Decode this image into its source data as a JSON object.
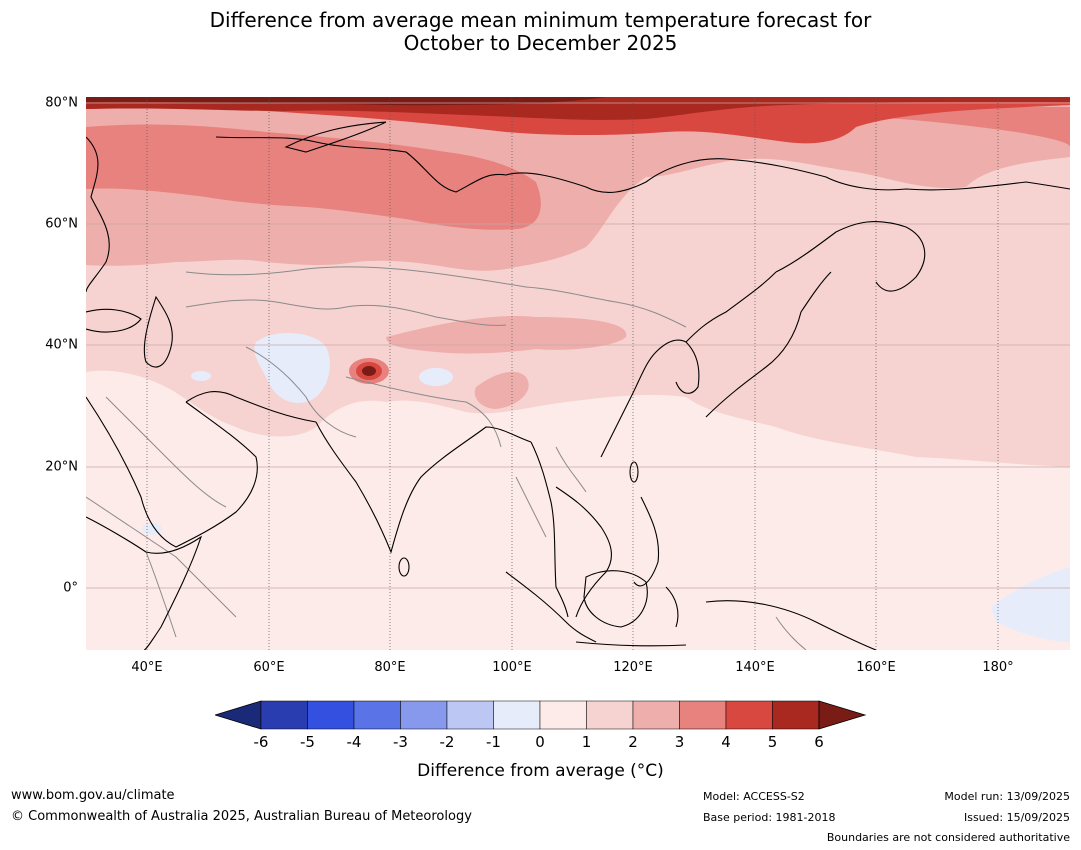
{
  "title_line1": "Difference from average mean minimum temperature forecast for",
  "title_line2": "October to December 2025",
  "lat_labels": [
    "80°N",
    "60°N",
    "40°N",
    "20°N",
    "0°"
  ],
  "lon_labels": [
    "40°E",
    "60°E",
    "80°E",
    "100°E",
    "120°E",
    "140°E",
    "160°E",
    "180°"
  ],
  "colorbar": {
    "ticks": [
      "-6",
      "-5",
      "-4",
      "-3",
      "-2",
      "-1",
      "0",
      "1",
      "2",
      "3",
      "4",
      "5",
      "6"
    ],
    "colors": [
      "#1b2a78",
      "#2a3db0",
      "#3350e0",
      "#5a73e6",
      "#8799ec",
      "#bcc7f4",
      "#e7ecfb",
      "#fdebe9",
      "#f6d3d0",
      "#eeaeab",
      "#e7827e",
      "#d84840",
      "#a9281f",
      "#7a1c16"
    ],
    "label": "Difference from average (°C)"
  },
  "footer": {
    "website": "www.bom.gov.au/climate",
    "copyright": "© Commonwealth of Australia 2025, Australian Bureau of Meteorology",
    "model": "Model: ACCESS-S2",
    "base_period": "Base period: 1981-2018",
    "model_run": "Model run: 13/09/2025",
    "issued": "Issued: 15/09/2025",
    "disclaimer": "Boundaries are not considered authoritative"
  }
}
